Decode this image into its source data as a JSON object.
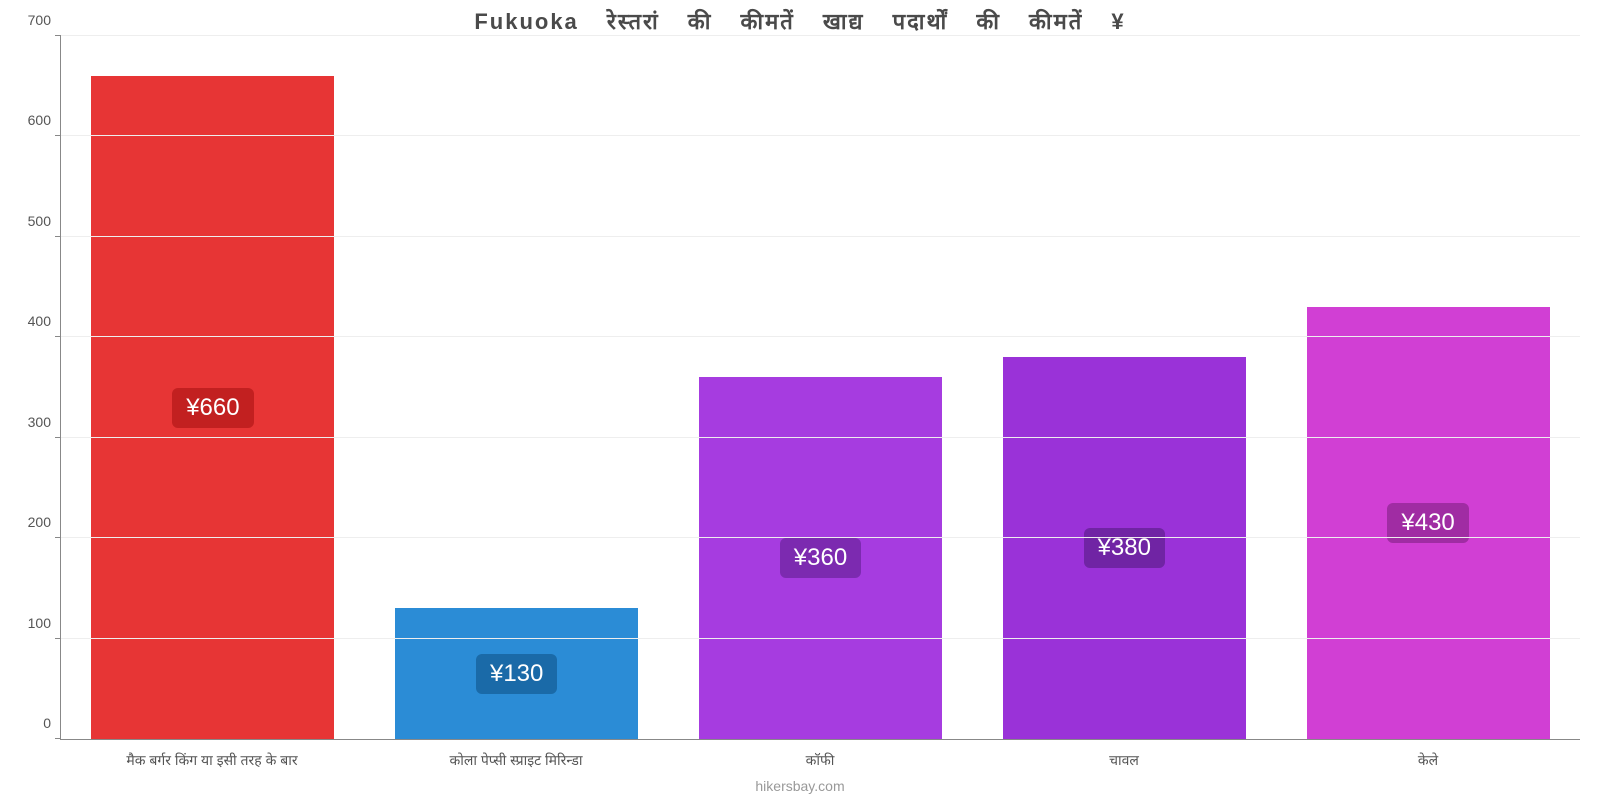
{
  "chart": {
    "type": "bar",
    "title": "Fukuoka रेस्तरां    की    कीमतें    खाद्य    पदार्थों    की    कीमतें    ¥",
    "title_fontsize": 22,
    "title_color": "#4a4a4a",
    "background_color": "#ffffff",
    "grid_color": "#eeeeee",
    "axis_color": "#888888",
    "label_color": "#555555",
    "label_fontsize": 14,
    "value_label_fontsize": 24,
    "value_label_text_color": "#ffffff",
    "ylim": [
      0,
      700
    ],
    "ytick_step": 100,
    "yticks": [
      0,
      100,
      200,
      300,
      400,
      500,
      600,
      700
    ],
    "bar_width": 0.8,
    "bars": [
      {
        "category": "मैक बर्गर किंग या इसी तरह के बार",
        "value": 660,
        "value_label": "¥660",
        "bar_color": "#e73535",
        "badge_color": "#c22020"
      },
      {
        "category": "कोला पेप्सी स्प्राइट मिरिन्डा",
        "value": 130,
        "value_label": "¥130",
        "bar_color": "#2b8cd6",
        "badge_color": "#1a6aa8"
      },
      {
        "category": "कॉफी",
        "value": 360,
        "value_label": "¥360",
        "bar_color": "#a63ce0",
        "badge_color": "#7c2ab0"
      },
      {
        "category": "चावल",
        "value": 380,
        "value_label": "¥380",
        "bar_color": "#9a32d8",
        "badge_color": "#7024a4"
      },
      {
        "category": "केले",
        "value": 430,
        "value_label": "¥430",
        "bar_color": "#d13fd4",
        "badge_color": "#a02ca3"
      }
    ],
    "source": "hikersbay.com"
  }
}
